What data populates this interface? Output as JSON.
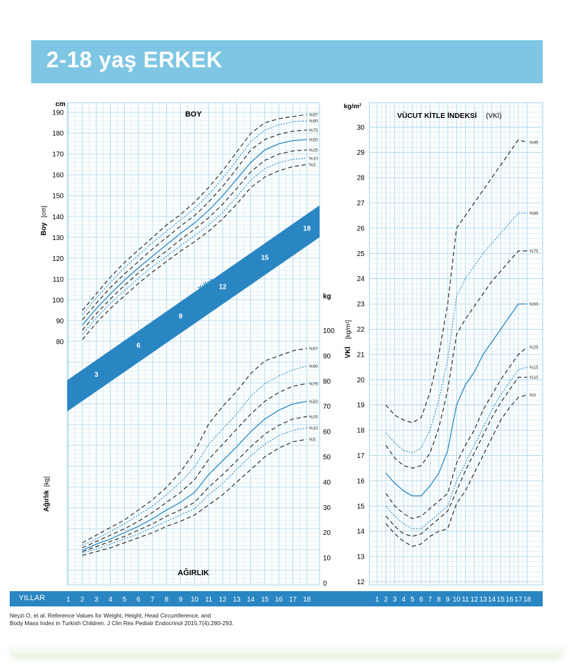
{
  "header": {
    "title": "2-18 yaş ERKEK",
    "banner_color": "#7ec6e4"
  },
  "colors": {
    "grid_major": "#9fd0ea",
    "grid_minor": "#d3ebf7",
    "blue_curve": "#2a86c2",
    "band": "#2a86c2",
    "dark_curve": "#1a1a1a"
  },
  "footer": {
    "years_label": "YILLAR",
    "citation_line1": "Neyzi O, et al. Reference Values for Weight, Height, Head Circumference, and",
    "citation_line2": "Body Mass Index in Turkish Children. J Clin Res Pediatr Endocrinol 2015;7(4):280-293."
  },
  "chart_data": [
    {
      "type": "line",
      "title": "BOY",
      "ylabel": "Boy",
      "ylabel_unit": "[cm]",
      "yunit": "cm",
      "ylim": [
        75,
        190
      ],
      "yticks": [
        80,
        90,
        100,
        110,
        120,
        130,
        140,
        150,
        160,
        170,
        180,
        190
      ],
      "x": [
        2,
        3,
        4,
        5,
        6,
        7,
        8,
        9,
        10,
        11,
        12,
        13,
        14,
        15,
        16,
        17,
        18
      ],
      "xlabel": "YILLAR",
      "band_label": "Yıllar",
      "band_ages": [
        3,
        6,
        9,
        12,
        15,
        18
      ],
      "series": [
        {
          "name": "%97",
          "style": "dash",
          "values": [
            95,
            103,
            111,
            118,
            124,
            130,
            136,
            141,
            147,
            154,
            162,
            171,
            180,
            185,
            187,
            188,
            189
          ]
        },
        {
          "name": "%90",
          "style": "dot",
          "values": [
            93,
            101,
            108.5,
            115.5,
            121.5,
            127.5,
            133,
            138.5,
            144,
            150.5,
            158.5,
            167,
            176,
            181.5,
            184,
            185.5,
            186
          ]
        },
        {
          "name": "%75",
          "style": "dash",
          "values": [
            90.5,
            98.5,
            106,
            112.5,
            118.5,
            124.5,
            130,
            135.5,
            140.5,
            147,
            154.5,
            163,
            172,
            177,
            179.5,
            181,
            181.5
          ]
        },
        {
          "name": "%50",
          "style": "solid",
          "values": [
            88,
            96,
            103,
            109.5,
            115.5,
            121,
            126.5,
            132,
            137,
            143,
            150,
            158,
            166,
            172,
            175,
            176.5,
            177
          ]
        },
        {
          "name": "%25",
          "style": "dash",
          "values": [
            85.5,
            93.5,
            100.5,
            107,
            113,
            118.5,
            123.5,
            129,
            134,
            139.5,
            146,
            153.5,
            161.5,
            167,
            170,
            171.5,
            172
          ]
        },
        {
          "name": "%10",
          "style": "dot",
          "values": [
            83.5,
            91.5,
            98.5,
            104.5,
            110.5,
            116,
            121,
            126,
            131,
            136,
            142,
            149.5,
            157.5,
            163,
            166,
            167.5,
            168
          ]
        },
        {
          "name": "%3",
          "style": "dash",
          "values": [
            81,
            89,
            96,
            102,
            108,
            113.5,
            118.5,
            123.5,
            128,
            133,
            139,
            146,
            154,
            159,
            162,
            164,
            165
          ]
        }
      ]
    },
    {
      "type": "line",
      "title": "AĞIRLIK",
      "ylabel": "Ağırlık",
      "ylabel_unit": "[kg]",
      "yunit": "kg",
      "ylim": [
        0,
        100
      ],
      "yticks": [
        0,
        10,
        20,
        30,
        40,
        50,
        60,
        70,
        80,
        90,
        100
      ],
      "x": [
        2,
        3,
        4,
        5,
        6,
        7,
        8,
        9,
        10,
        11,
        12,
        13,
        14,
        15,
        16,
        17,
        18
      ],
      "series": [
        {
          "name": "%97",
          "style": "dash",
          "values": [
            16,
            19,
            22,
            25,
            29,
            33,
            38,
            44,
            52,
            63,
            70,
            76,
            83,
            88,
            90,
            92,
            93
          ]
        },
        {
          "name": "%90",
          "style": "dot",
          "values": [
            15,
            17.5,
            20.5,
            23.5,
            27,
            30.5,
            35,
            40,
            46,
            55,
            61,
            67,
            74,
            79,
            82,
            84.5,
            86
          ]
        },
        {
          "name": "%75",
          "style": "dash",
          "values": [
            14,
            16.5,
            19,
            21.5,
            24.5,
            28,
            32,
            36,
            41,
            49,
            55,
            61,
            67,
            72,
            75.5,
            78,
            79
          ]
        },
        {
          "name": "%50",
          "style": "solid",
          "values": [
            13,
            15.5,
            17.5,
            20,
            22.5,
            25.5,
            29,
            32,
            36,
            43,
            48.5,
            54,
            60,
            65,
            68.5,
            71,
            72
          ]
        },
        {
          "name": "%25",
          "style": "dash",
          "values": [
            12.5,
            14.5,
            16.5,
            18.5,
            21,
            23.5,
            26.5,
            29,
            32,
            38,
            43,
            48.5,
            54,
            59,
            62.5,
            65,
            66
          ]
        },
        {
          "name": "%10",
          "style": "dot",
          "values": [
            12,
            13.5,
            15.5,
            17.5,
            19.5,
            22,
            24.5,
            27,
            29.5,
            35,
            39.5,
            45,
            50.5,
            55,
            58.5,
            60.5,
            61.5
          ]
        },
        {
          "name": "%5",
          "style": "dash",
          "values": [
            11,
            12.5,
            14,
            16,
            18,
            20,
            22.5,
            24.5,
            27,
            31,
            35,
            40,
            45,
            50,
            53.5,
            56,
            57
          ]
        }
      ]
    },
    {
      "type": "line",
      "title": "VÜCUT KİTLE İNDEKSİ",
      "title_abbr": "(VKİ)",
      "ylabel": "VKİ",
      "ylabel_unit": "[kg/m²]",
      "yunit": "kg/m²",
      "ylim": [
        12,
        31
      ],
      "yticks": [
        12,
        13,
        14,
        15,
        16,
        17,
        18,
        19,
        20,
        21,
        22,
        23,
        24,
        25,
        26,
        27,
        28,
        29,
        30
      ],
      "x": [
        2,
        3,
        4,
        5,
        6,
        7,
        8,
        9,
        10,
        11,
        12,
        13,
        14,
        15,
        16,
        17,
        18
      ],
      "xticks": [
        1,
        2,
        3,
        4,
        5,
        6,
        7,
        8,
        9,
        10,
        11,
        12,
        13,
        14,
        15,
        16,
        17,
        18
      ],
      "series": [
        {
          "name": "%95",
          "style": "dash",
          "values": [
            19,
            18.6,
            18.4,
            18.3,
            18.5,
            19.5,
            21,
            23,
            26,
            26.5,
            27,
            27.5,
            28,
            28.5,
            29,
            29.5,
            29.4
          ]
        },
        {
          "name": "%85",
          "style": "dot",
          "values": [
            17.9,
            17.5,
            17.2,
            17.1,
            17.3,
            18,
            19.2,
            20.8,
            23.3,
            24,
            24.5,
            25,
            25.4,
            25.8,
            26.2,
            26.6,
            26.6
          ]
        },
        {
          "name": "%75",
          "style": "dash",
          "values": [
            17.4,
            16.9,
            16.6,
            16.5,
            16.6,
            17.1,
            18.1,
            19.6,
            21.8,
            22.4,
            22.9,
            23.4,
            23.9,
            24.3,
            24.7,
            25.1,
            25.1
          ]
        },
        {
          "name": "%50",
          "style": "solid",
          "values": [
            16.3,
            15.9,
            15.6,
            15.4,
            15.4,
            15.8,
            16.3,
            17.2,
            19,
            19.8,
            20.3,
            21,
            21.5,
            22,
            22.5,
            23,
            23
          ]
        },
        {
          "name": "%25",
          "style": "dash",
          "values": [
            15.5,
            15,
            14.7,
            14.5,
            14.6,
            14.9,
            15.2,
            15.5,
            16.7,
            17.4,
            18,
            18.8,
            19.4,
            20,
            20.5,
            21,
            21.3
          ]
        },
        {
          "name": "%15",
          "style": "dot",
          "values": [
            15,
            14.6,
            14.3,
            14.1,
            14.1,
            14.4,
            14.7,
            15,
            16,
            16.7,
            17.4,
            18.1,
            18.8,
            19.4,
            19.9,
            20.4,
            20.5
          ]
        },
        {
          "name": "%10",
          "style": "dash",
          "values": [
            14.6,
            14.2,
            13.9,
            13.8,
            13.9,
            14.2,
            14.5,
            14.8,
            15.6,
            16.4,
            17.1,
            17.8,
            18.5,
            19.1,
            19.6,
            20.1,
            20.1
          ]
        },
        {
          "name": "%5",
          "style": "dash",
          "values": [
            14.3,
            13.9,
            13.6,
            13.4,
            13.5,
            13.8,
            14,
            14.1,
            15.1,
            15.6,
            16.3,
            17,
            17.7,
            18.4,
            18.9,
            19.3,
            19.4
          ]
        }
      ]
    }
  ]
}
